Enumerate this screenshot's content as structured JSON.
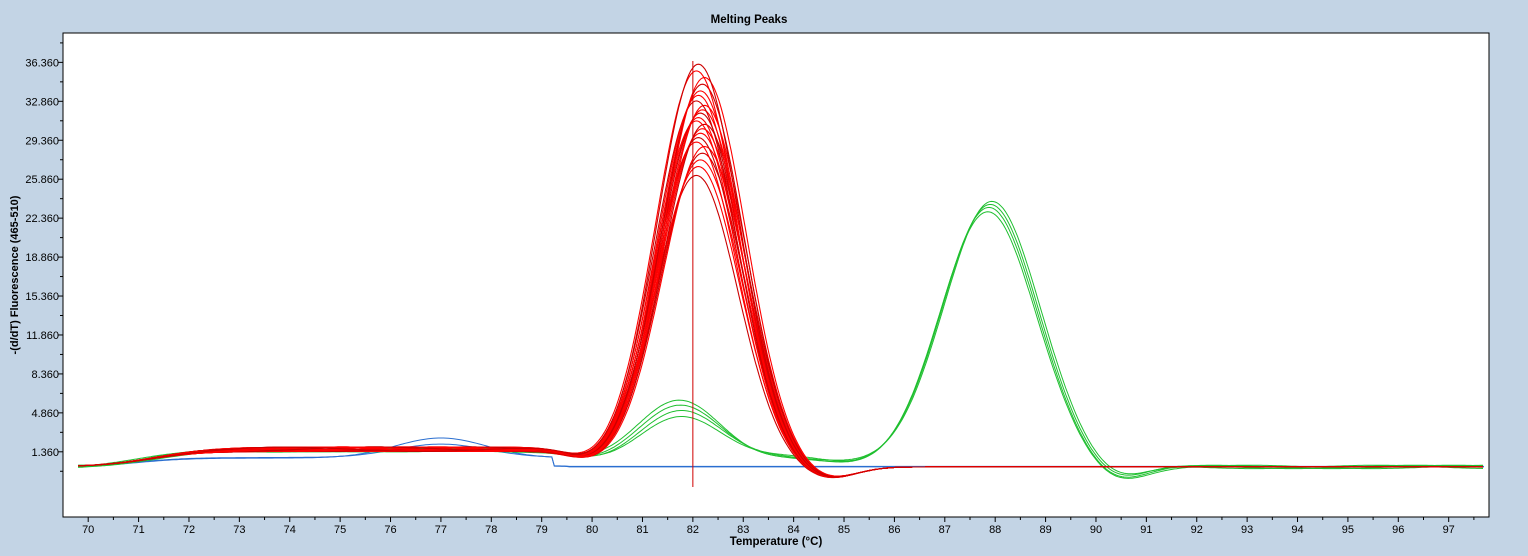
{
  "chart_data": {
    "type": "line",
    "title": "Melting Peaks",
    "xlabel": "Temperature (°C)",
    "ylabel": "-(d/dT) Fluorescence (465-510)",
    "xlim": [
      69.5,
      97.8
    ],
    "ylim": [
      -4.5,
      39.0
    ],
    "x_ticks": [
      "70",
      "71",
      "72",
      "73",
      "74",
      "75",
      "76",
      "77",
      "78",
      "79",
      "80",
      "81",
      "82",
      "83",
      "84",
      "85",
      "86",
      "87",
      "88",
      "89",
      "90",
      "91",
      "92",
      "93",
      "94",
      "95",
      "96",
      "97"
    ],
    "y_ticks": [
      "1.360",
      "4.860",
      "8.360",
      "11.860",
      "15.360",
      "18.860",
      "22.360",
      "25.860",
      "29.360",
      "32.860",
      "36.360"
    ],
    "grid": false,
    "cursor_x": 82.0,
    "series_groups": [
      {
        "group": "red",
        "color": "#ff0000",
        "count": 22,
        "peak_center": 82.15,
        "peak_heights": [
          26.2,
          27.0,
          27.6,
          28.2,
          28.8,
          29.2,
          29.6,
          30.0,
          30.4,
          30.8,
          31.1,
          31.4,
          31.8,
          32.1,
          32.5,
          32.9,
          33.4,
          33.8,
          34.4,
          35.0,
          35.6,
          36.2
        ]
      },
      {
        "group": "green",
        "color": "#1fbf2f",
        "count": 4,
        "peak_center": 87.85,
        "peak_heights": [
          22.8,
          23.2,
          23.6,
          24.0
        ],
        "minor_peak_center": 81.75,
        "minor_peak_heights": [
          4.6,
          5.0,
          5.4,
          5.9
        ]
      },
      {
        "group": "blue",
        "color": "#2b6fd0",
        "count": 2,
        "baseline": 0.0
      }
    ]
  },
  "colors": {
    "background": "#c3d4e5",
    "plot_area": "#ffffff",
    "axis": "#000000"
  }
}
